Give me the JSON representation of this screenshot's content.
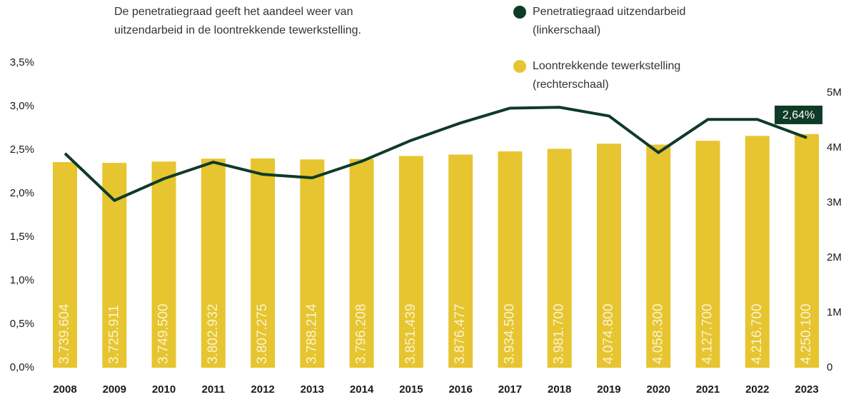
{
  "chart_data": {
    "type": "bar_line",
    "subtitle": [
      "De penetratiegraad geeft het aandeel weer van",
      "uitzendarbeid in de loontrekkende tewerkstelling."
    ],
    "categories": [
      "2008",
      "2009",
      "2010",
      "2011",
      "2012",
      "2013",
      "2014",
      "2015",
      "2016",
      "2017",
      "2018",
      "2019",
      "2020",
      "2021",
      "2022",
      "2023"
    ],
    "series": [
      {
        "name": "Penetratiegraad uitzendarbeid",
        "note": "(linkerschaal)",
        "color": "#0e3b27",
        "type": "line",
        "axis": "y",
        "values": [
          2.46,
          1.92,
          2.17,
          2.36,
          2.22,
          2.18,
          2.37,
          2.61,
          2.81,
          2.98,
          2.99,
          2.89,
          2.47,
          2.85,
          2.85,
          2.64
        ],
        "end_label": {
          "index": 15,
          "label": "2,64%"
        }
      },
      {
        "name": "Loontrekkende tewerkstelling",
        "note": "(rechterschaal)",
        "color": "#e6c530",
        "type": "bar",
        "axis": "y2",
        "values": [
          3739604,
          3725911,
          3749500,
          3802932,
          3807275,
          3788214,
          3796208,
          3851439,
          3876477,
          3934500,
          3981700,
          4074800,
          4058300,
          4127700,
          4216700,
          4250100
        ],
        "value_labels": [
          "3.739.604",
          "3.725.911",
          "3.749.500",
          "3.802.932",
          "3.807.275",
          "3.788.214",
          "3.796.208",
          "3.851.439",
          "3.876.477",
          "3.934.500",
          "3.981.700",
          "4.074.800",
          "4.058.300",
          "4.127.700",
          "4.216.700",
          "4.250.100"
        ]
      }
    ],
    "ylim": [
      0,
      3.5
    ],
    "yticks": [
      {
        "value": 0,
        "label": "0,0%"
      },
      {
        "value": 0.5,
        "label": "0,5%"
      },
      {
        "value": 1,
        "label": "1,0%"
      },
      {
        "value": 1.5,
        "label": "1,5%"
      },
      {
        "value": 2,
        "label": "2,0%"
      },
      {
        "value": 2.5,
        "label": "2,5%"
      },
      {
        "value": 3,
        "label": "3,0%"
      },
      {
        "value": 3.5,
        "label": "3,5%"
      }
    ],
    "y2lim": [
      0,
      5000000
    ],
    "y2ticks": [
      0,
      {
        "value": 1000000,
        "label": "1M"
      },
      {
        "value": 2000000,
        "label": "2M"
      },
      {
        "value": 3000000,
        "label": "3M"
      },
      {
        "value": 4000000,
        "label": "4M"
      },
      {
        "value": 5000000,
        "label": "5M"
      }
    ]
  }
}
